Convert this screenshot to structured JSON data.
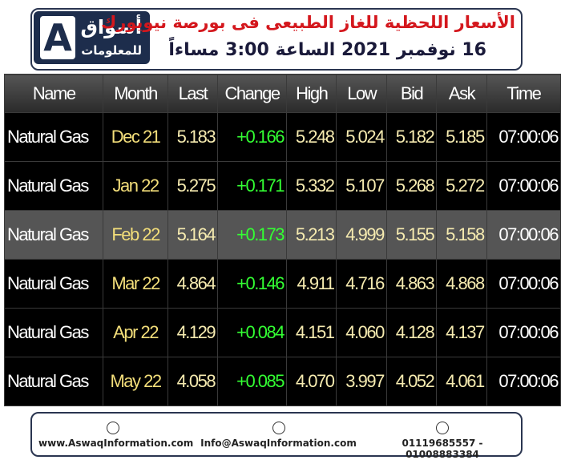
{
  "header": {
    "logo": {
      "line1": "أسواق",
      "line2": "للمعلومات"
    },
    "title": "الأسعار اللحظية للغاز الطبيعى فى بورصة نيويورك",
    "subtitle": "16 نوفمبر 2021 الساعة 3:00 مساءاً"
  },
  "table": {
    "columns": [
      "Name",
      "Month",
      "Last",
      "Change",
      "High",
      "Low",
      "Bid",
      "Ask",
      "Time"
    ],
    "rows": [
      [
        "Natural Gas",
        "Dec 21",
        "5.183",
        "+0.166",
        "5.248",
        "5.024",
        "5.182",
        "5.185",
        "07:00:06"
      ],
      [
        "Natural Gas",
        "Jan 22",
        "5.275",
        "+0.171",
        "5.332",
        "5.107",
        "5.268",
        "5.272",
        "07:00:06"
      ],
      [
        "Natural Gas",
        "Feb 22",
        "5.164",
        "+0.173",
        "5.213",
        "4.999",
        "5.155",
        "5.158",
        "07:00:06"
      ],
      [
        "Natural Gas",
        "Mar 22",
        "4.864",
        "+0.146",
        "4.911",
        "4.716",
        "4.863",
        "4.868",
        "07:00:06"
      ],
      [
        "Natural Gas",
        "Apr 22",
        "4.129",
        "+0.084",
        "4.151",
        "4.060",
        "4.128",
        "4.137",
        "07:00:06"
      ],
      [
        "Natural Gas",
        "May 22",
        "4.058",
        "+0.085",
        "4.070",
        "3.997",
        "4.052",
        "4.061",
        "07:00:06"
      ]
    ]
  },
  "footer": {
    "website": "www.AswaqInformation.com",
    "email": "Info@AswaqInformation.com",
    "phones": "01119685557 - 01008883384"
  }
}
